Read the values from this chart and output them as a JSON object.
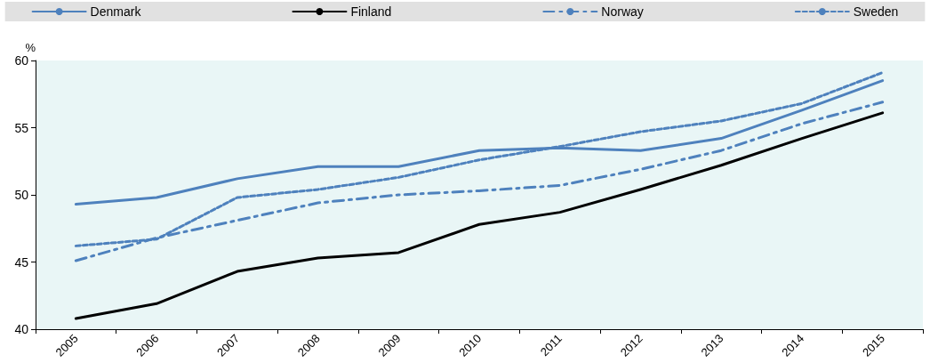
{
  "chart_data": {
    "type": "line",
    "ylabel": "%",
    "categories": [
      "2005",
      "2006",
      "2007",
      "2008",
      "2009",
      "2010",
      "2011",
      "2012",
      "2013",
      "2014",
      "2015"
    ],
    "ylim": [
      40,
      60
    ],
    "yticks": [
      40,
      45,
      50,
      55,
      60
    ],
    "grid": false,
    "legend": "top",
    "marker": "none",
    "series": [
      {
        "name": "Denmark",
        "color": "#4e81bd",
        "line_style": "solid",
        "values": [
          49.3,
          49.8,
          51.2,
          52.1,
          52.1,
          53.3,
          53.5,
          53.3,
          54.2,
          56.3,
          58.5
        ]
      },
      {
        "name": "Finland",
        "color": "#000000",
        "line_style": "solid",
        "values": [
          40.8,
          41.9,
          44.3,
          45.3,
          45.7,
          47.8,
          48.7,
          50.4,
          52.2,
          54.2,
          56.1
        ]
      },
      {
        "name": "Norway",
        "color": "#4e81bd",
        "line_style": "dashed",
        "values": [
          45.1,
          46.8,
          48.1,
          49.4,
          50.0,
          50.3,
          50.7,
          51.9,
          53.3,
          55.3,
          56.9
        ]
      },
      {
        "name": "Sweden",
        "color": "#4e81bd",
        "line_style": "dotted",
        "values": [
          46.2,
          46.7,
          49.8,
          50.4,
          51.3,
          52.6,
          53.6,
          54.7,
          55.5,
          56.8,
          59.1
        ]
      }
    ]
  }
}
